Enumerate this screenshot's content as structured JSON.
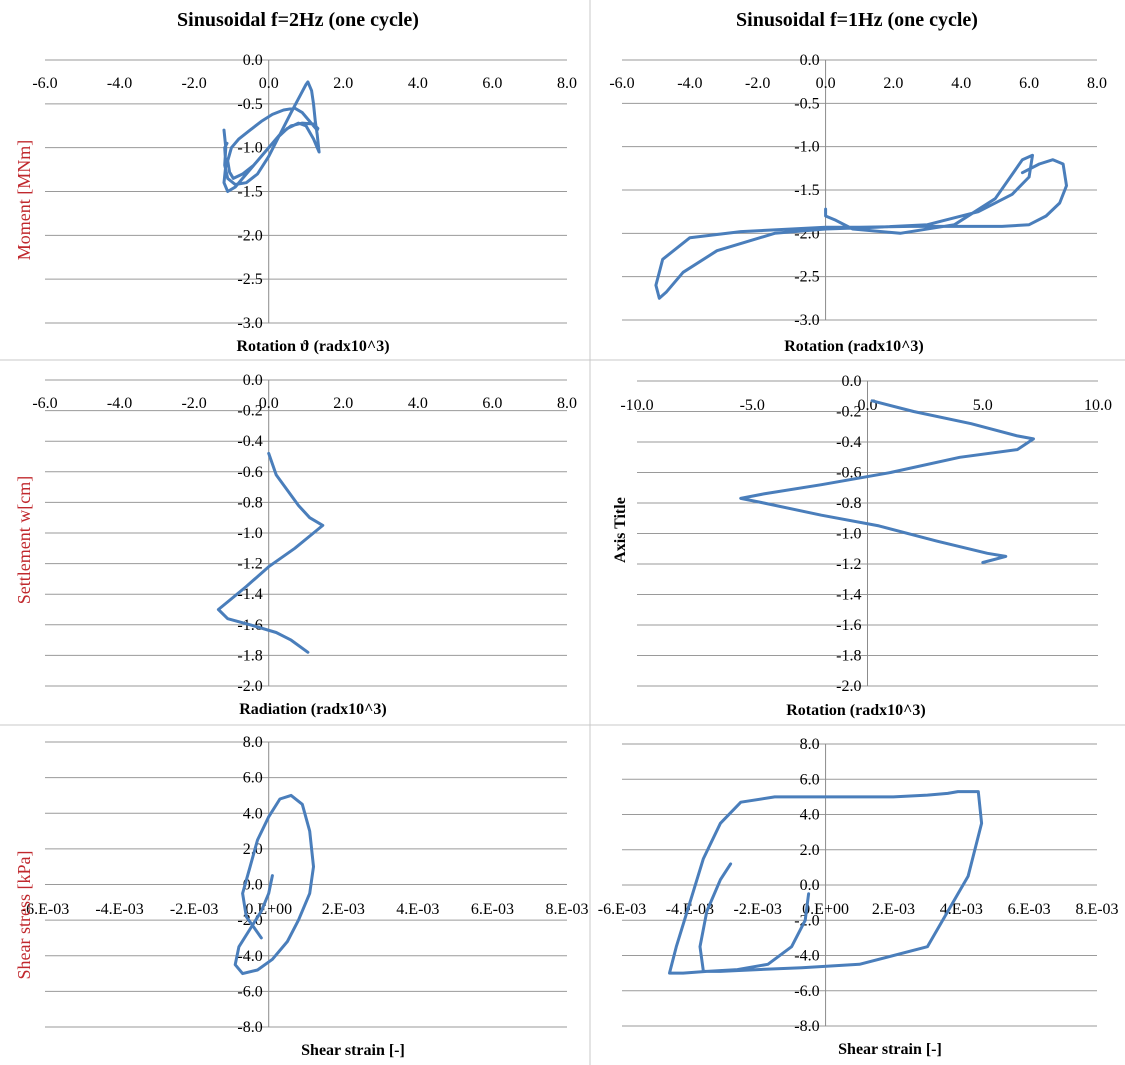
{
  "colors": {
    "series": "#4a7ebb",
    "ylabel_red": "#c0282d",
    "grid": "#9a9a9a"
  },
  "chart_data": [
    {
      "type": "line",
      "title": "Sinusoidal f=2Hz (one cycle)",
      "xlabel": "Rotation ϑ (radx10^3)",
      "ylabel": "Moment [MNm]",
      "xlim": [
        -6,
        8
      ],
      "ylim": [
        -3,
        0
      ],
      "xticks": [
        "-6.0",
        "-4.0",
        "-2.0",
        "0.0",
        "2.0",
        "4.0",
        "6.0",
        "8.0"
      ],
      "yticks": [
        "0.0",
        "-0.5",
        "-1.0",
        "-1.5",
        "-2.0",
        "-2.5",
        "-3.0"
      ],
      "grid": true,
      "series": [
        {
          "x": [
            -1.2,
            -1.15,
            -1.18,
            -1.1,
            -0.9,
            -0.6,
            -0.3,
            0.0,
            0.3,
            0.6,
            0.85,
            1.0,
            1.05,
            1.15,
            1.2,
            1.25,
            1.3,
            1.35,
            1.2,
            1.0,
            0.8,
            0.5,
            0.2,
            -0.1,
            -0.4,
            -0.7,
            -0.95,
            -1.05,
            -1.1,
            -1.0,
            -0.8,
            -0.5,
            -0.2,
            0.1,
            0.4,
            0.7,
            0.9,
            1.1,
            1.2,
            1.3,
            1.32,
            1.2,
            0.9,
            0.6,
            0.3,
            0.0,
            -0.3,
            -0.6,
            -0.9,
            -1.1,
            -1.2,
            -1.15,
            -1.18,
            -1.12
          ],
          "y": [
            -0.8,
            -1.0,
            -1.2,
            -1.35,
            -1.42,
            -1.4,
            -1.3,
            -1.1,
            -0.85,
            -0.6,
            -0.4,
            -0.28,
            -0.25,
            -0.35,
            -0.5,
            -0.7,
            -0.85,
            -1.05,
            -0.9,
            -0.75,
            -0.72,
            -0.78,
            -0.9,
            -1.05,
            -1.2,
            -1.3,
            -1.35,
            -1.28,
            -1.15,
            -1.0,
            -0.9,
            -0.8,
            -0.7,
            -0.62,
            -0.57,
            -0.55,
            -0.6,
            -0.7,
            -0.75,
            -0.8,
            -0.78,
            -0.73,
            -0.72,
            -0.75,
            -0.85,
            -1.0,
            -1.15,
            -1.3,
            -1.45,
            -1.5,
            -1.4,
            -1.2,
            -1.0,
            -0.95
          ]
        }
      ]
    },
    {
      "type": "line",
      "title": "Sinusoidal f=1Hz (one cycle)",
      "xlabel": "Rotation (radx10^3)",
      "ylabel": "",
      "xlim": [
        -6,
        8
      ],
      "ylim": [
        -3,
        0
      ],
      "xticks": [
        "-6.0",
        "-4.0",
        "-2.0",
        "0.0",
        "2.0",
        "4.0",
        "6.0",
        "8.0"
      ],
      "yticks": [
        "0.0",
        "-0.5",
        "-1.0",
        "-1.5",
        "-2.0",
        "-2.5",
        "-3.0"
      ],
      "grid": true,
      "series": [
        {
          "x": [
            5.8,
            6.3,
            6.7,
            7.0,
            7.1,
            6.9,
            6.5,
            6.0,
            5.2,
            4.0,
            2.5,
            1.0,
            0.0,
            -1.0,
            -2.5,
            -4.0,
            -4.8,
            -5.0,
            -4.9,
            -4.7,
            -4.2,
            -3.2,
            -1.5,
            0.0,
            1.5,
            3.0,
            4.5,
            5.5,
            6.0,
            6.1,
            5.8,
            5.0,
            3.8,
            2.2,
            0.8,
            0.3,
            0.0,
            0.0
          ],
          "y": [
            -1.3,
            -1.2,
            -1.15,
            -1.2,
            -1.45,
            -1.65,
            -1.8,
            -1.9,
            -1.92,
            -1.92,
            -1.92,
            -1.93,
            -1.93,
            -1.95,
            -1.98,
            -2.05,
            -2.3,
            -2.6,
            -2.75,
            -2.68,
            -2.45,
            -2.2,
            -2.0,
            -1.95,
            -1.93,
            -1.9,
            -1.75,
            -1.55,
            -1.35,
            -1.1,
            -1.15,
            -1.6,
            -1.9,
            -2.0,
            -1.95,
            -1.85,
            -1.8,
            -1.72
          ]
        }
      ]
    },
    {
      "type": "line",
      "title": "",
      "xlabel": "Radiation (radx10^3)",
      "ylabel": "Settlement w[cm]",
      "xlim": [
        -6,
        8
      ],
      "ylim": [
        -2,
        0
      ],
      "xticks": [
        "-6.0",
        "-4.0",
        "-2.0",
        "0.0",
        "2.0",
        "4.0",
        "6.0",
        "8.0"
      ],
      "yticks": [
        "0.0",
        "-0.2",
        "-0.4",
        "-0.6",
        "-0.8",
        "-1.0",
        "-1.2",
        "-1.4",
        "-1.6",
        "-1.8",
        "-2.0"
      ],
      "grid": true,
      "series": [
        {
          "x": [
            0.0,
            0.2,
            0.5,
            0.8,
            1.1,
            1.45,
            1.2,
            0.7,
            0.0,
            -0.6,
            -1.1,
            -1.35,
            -1.1,
            -0.5,
            0.2,
            0.6,
            1.05
          ],
          "y": [
            -0.48,
            -0.62,
            -0.72,
            -0.82,
            -0.9,
            -0.95,
            -1.0,
            -1.1,
            -1.22,
            -1.35,
            -1.45,
            -1.5,
            -1.56,
            -1.6,
            -1.65,
            -1.7,
            -1.78
          ]
        }
      ]
    },
    {
      "type": "line",
      "title": "",
      "xlabel": "Rotation (radx10^3)",
      "ylabel": "Axis Title",
      "xlim": [
        -10,
        10
      ],
      "ylim": [
        -2,
        0
      ],
      "xticks": [
        "-10.0",
        "-5.0",
        "0.0",
        "5.0",
        "10.0"
      ],
      "yticks": [
        "0.0",
        "-0.2",
        "-0.4",
        "-0.6",
        "-0.8",
        "-1.0",
        "-1.2",
        "-1.4",
        "-1.6",
        "-1.8",
        "-2.0"
      ],
      "grid": true,
      "series": [
        {
          "x": [
            0.2,
            2.0,
            4.5,
            6.5,
            7.2,
            6.5,
            4.0,
            1.0,
            -2.0,
            -4.5,
            -5.5,
            -4.5,
            -2.0,
            0.5,
            3.0,
            5.2,
            6.0,
            5.0
          ],
          "y": [
            -0.13,
            -0.2,
            -0.28,
            -0.36,
            -0.38,
            -0.45,
            -0.5,
            -0.6,
            -0.68,
            -0.74,
            -0.77,
            -0.8,
            -0.88,
            -0.95,
            -1.05,
            -1.13,
            -1.15,
            -1.19
          ]
        }
      ]
    },
    {
      "type": "line",
      "title": "",
      "xlabel": "Shear strain [-]",
      "ylabel": "Shear stress [kPa]",
      "xlim": [
        -0.006,
        0.008
      ],
      "ylim": [
        -8,
        8
      ],
      "xticks": [
        "-6.E-03",
        "-4.E-03",
        "-2.E-03",
        "0.E+00",
        "2.E-03",
        "4.E-03",
        "6.E-03",
        "8.E-03"
      ],
      "yticks": [
        "8.0",
        "6.0",
        "4.0",
        "2.0",
        "0.0",
        "-2.0",
        "-4.0",
        "-6.0",
        "-8.0"
      ],
      "grid": true,
      "series": [
        {
          "x": [
            0.0001,
            0.0,
            -0.0002,
            -0.0005,
            -0.0008,
            -0.0009,
            -0.0007,
            -0.0003,
            0.0001,
            0.0005,
            0.0008,
            0.0011,
            0.0012,
            0.0011,
            0.0009,
            0.0006,
            0.0003,
            0.0,
            -0.0003,
            -0.0005,
            -0.0007,
            -0.0006,
            -0.0002
          ],
          "y": [
            0.5,
            -0.5,
            -1.5,
            -2.5,
            -3.5,
            -4.5,
            -5.0,
            -4.8,
            -4.2,
            -3.2,
            -2.0,
            -0.5,
            1.0,
            3.0,
            4.5,
            5.0,
            4.8,
            3.8,
            2.5,
            1.0,
            -0.5,
            -1.8,
            -3.0
          ]
        }
      ]
    },
    {
      "type": "line",
      "title": "",
      "xlabel": "Shear strain [-]",
      "ylabel": "",
      "xlim": [
        -0.006,
        0.008
      ],
      "ylim": [
        -8,
        8
      ],
      "xticks": [
        "-6.E-03",
        "-4.E-03",
        "-2.E-03",
        "0.E+00",
        "2.E-03",
        "4.E-03",
        "6.E-03",
        "8.E-03"
      ],
      "yticks": [
        "8.0",
        "6.0",
        "4.0",
        "2.0",
        "0.0",
        "-2.0",
        "-4.0",
        "-6.0",
        "-8.0"
      ],
      "grid": true,
      "series": [
        {
          "x": [
            -0.0005,
            -0.0006,
            -0.001,
            -0.0017,
            -0.0026,
            -0.0035,
            -0.0042,
            -0.0046,
            -0.0044,
            -0.004,
            -0.0036,
            -0.0031,
            -0.0025,
            -0.0015,
            0.0,
            0.002,
            0.003,
            0.0036,
            0.0039,
            0.0042,
            0.0045,
            0.0046,
            0.0042,
            0.003,
            0.001,
            -0.0007,
            -0.002,
            -0.0031,
            -0.0036,
            -0.0037,
            -0.0035,
            -0.0031,
            -0.0028
          ],
          "y": [
            -0.5,
            -2.0,
            -3.5,
            -4.5,
            -4.8,
            -4.9,
            -5.0,
            -5.0,
            -3.5,
            -1.0,
            1.5,
            3.5,
            4.7,
            5.0,
            5.0,
            5.0,
            5.1,
            5.2,
            5.3,
            5.3,
            5.3,
            3.5,
            0.5,
            -3.5,
            -4.5,
            -4.7,
            -4.8,
            -4.9,
            -4.9,
            -3.5,
            -1.5,
            0.3,
            1.2
          ]
        }
      ]
    }
  ]
}
